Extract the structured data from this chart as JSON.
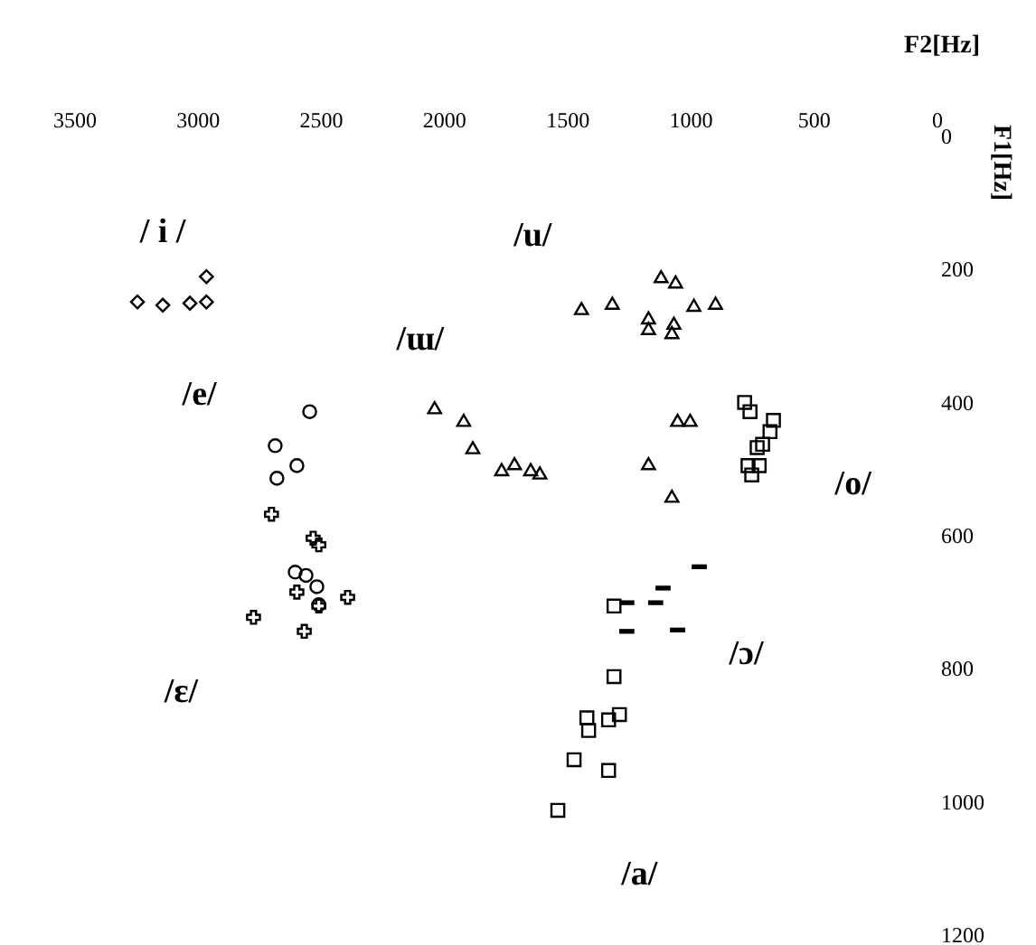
{
  "chart_data": {
    "type": "scatter",
    "xlabel": "F2[Hz]",
    "ylabel": "F1[Hz]",
    "xlim": [
      3500,
      0
    ],
    "xticks": [
      3500,
      3000,
      2500,
      2000,
      1500,
      1000,
      500,
      0
    ],
    "ylim": [
      1200,
      0
    ],
    "yticks": [
      0,
      200,
      400,
      600,
      800,
      1000,
      1200
    ],
    "grid": false,
    "series": [
      {
        "name": "/ i /",
        "color": "#000000",
        "marker": "diamond",
        "x": [
          3243,
          3140,
          3030,
          2963,
          2963
        ],
        "values": [
          250,
          255,
          252,
          250,
          212
        ]
      },
      {
        "name": "/e/",
        "color": "#000000",
        "marker": "circle",
        "x": [
          2544,
          2684,
          2596,
          2677,
          2603,
          2559,
          2515,
          2507
        ],
        "values": [
          415,
          466,
          496,
          515,
          656,
          661,
          678,
          705
        ]
      },
      {
        "name": "/ɛ/",
        "color": "#000000",
        "marker": "cross",
        "x": [
          2699,
          2530,
          2507,
          2596,
          2390,
          2772,
          2566,
          2507
        ],
        "values": [
          569,
          605,
          615,
          686,
          694,
          724,
          745,
          707
        ]
      },
      {
        "name": "/ɯ/",
        "color": "#000000",
        "marker": "triangle",
        "x": [
          2037,
          1919,
          1882,
          1765,
          1713,
          1647,
          1610
        ],
        "values": [
          409,
          428,
          469,
          502,
          493,
          502,
          507
        ]
      },
      {
        "name": "/u/",
        "color": "#000000",
        "marker": "triangle",
        "x": [
          1118,
          1059,
          1441,
          1316,
          985,
          897,
          1169,
          1169,
          1066,
          1074,
          1051,
          1000,
          1169,
          1074
        ],
        "values": [
          212,
          220,
          260,
          252,
          255,
          252,
          274,
          290,
          282,
          296,
          428,
          428,
          493,
          542
        ]
      },
      {
        "name": "/o/",
        "color": "#000000",
        "marker": "square",
        "x": [
          779,
          757,
          662,
          676,
          706,
          728,
          765,
          720,
          750
        ],
        "values": [
          401,
          415,
          428,
          445,
          464,
          469,
          496,
          496,
          510
        ]
      },
      {
        "name": "/ɔ/",
        "type": "scatter",
        "color": "#000000",
        "x": [
          963,
          1110,
          1140,
          1257,
          1051,
          1257
        ],
        "values": [
          648,
          680,
          702,
          745,
          743,
          702
        ]
      },
      {
        "name": "/a/",
        "color": "#000000",
        "marker": "square",
        "x": [
          1309,
          1309,
          1419,
          1412,
          1331,
          1287,
          1471,
          1331,
          1537
        ],
        "values": [
          707,
          813,
          875,
          894,
          878,
          870,
          938,
          954,
          1014
        ]
      }
    ]
  }
}
